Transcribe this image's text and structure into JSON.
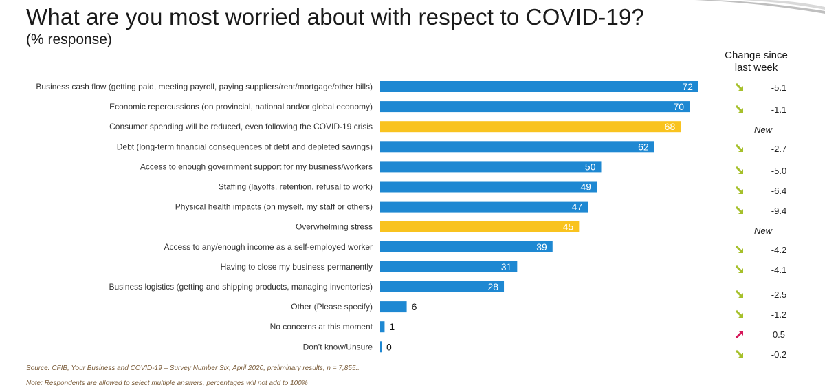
{
  "title": "What are you most worried about with respect to COVID-19?",
  "subtitle": "(% response)",
  "change_header_line1": "Change since",
  "change_header_line2": "last week",
  "source": "Source: CFIB, Your Business and COVID-19 – Survey Number Six, April 2020, preliminary results, n = 7,855..",
  "note": "Note: Respondents are allowed to select multiple answers, percentages will not add to 100%",
  "colors": {
    "blue": "#1e88d2",
    "yellow": "#f9c31f",
    "arrow_down": "#a6c02b",
    "arrow_up": "#d6185a"
  },
  "chart_data": {
    "type": "bar",
    "orientation": "horizontal",
    "categories": [
      "Business cash flow (getting paid, meeting payroll, paying suppliers/rent/mortgage/other bills)",
      "Economic repercussions (on provincial, national and/or global economy)",
      "Consumer spending will be reduced, even following the COVID-19 crisis",
      "Debt (long-term financial consequences of debt and depleted savings)",
      "Access to enough government support for my business/workers",
      "Staffing (layoffs, retention, refusal to work)",
      "Physical health impacts (on myself, my staff or others)",
      "Overwhelming stress",
      "Access to any/enough income as a self-employed worker",
      "Having to close my business permanently",
      "Business logistics (getting and shipping products, managing inventories)",
      "Other (Please specify)",
      "No concerns at this moment",
      "Don’t know/Unsure"
    ],
    "values": [
      72,
      70,
      68,
      62,
      50,
      49,
      47,
      45,
      39,
      31,
      28,
      6,
      1,
      0
    ],
    "value_labels": [
      "72",
      "70",
      "68",
      "62",
      "50",
      "49",
      "47",
      "45",
      "39",
      "31",
      "28",
      "6",
      "1",
      "0"
    ],
    "highlight": [
      false,
      false,
      true,
      false,
      false,
      false,
      false,
      true,
      false,
      false,
      false,
      false,
      false,
      false
    ],
    "change_since_last_week": [
      {
        "text": "-5.1",
        "dir": "down"
      },
      {
        "text": "-1.1",
        "dir": "down"
      },
      {
        "text": "New",
        "dir": "none"
      },
      {
        "text": "-2.7",
        "dir": "down"
      },
      {
        "text": "-5.0",
        "dir": "down"
      },
      {
        "text": "-6.4",
        "dir": "down"
      },
      {
        "text": "-9.4",
        "dir": "down"
      },
      {
        "text": "New",
        "dir": "none"
      },
      {
        "text": "-4.2",
        "dir": "down"
      },
      {
        "text": "-4.1",
        "dir": "down"
      },
      {
        "text": "-2.5",
        "dir": "down"
      },
      {
        "text": "-1.2",
        "dir": "down"
      },
      {
        "text": "0.5",
        "dir": "up"
      },
      {
        "text": "-0.2",
        "dir": "down"
      }
    ],
    "xlim": [
      0,
      72
    ],
    "grid": false,
    "legend": "none"
  }
}
